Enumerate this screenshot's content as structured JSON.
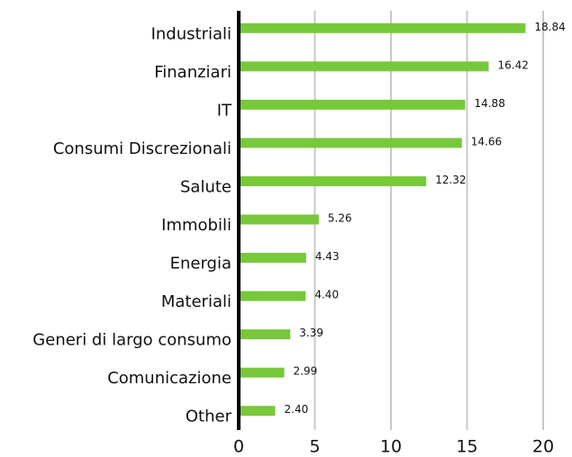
{
  "chart_data": {
    "type": "bar",
    "orientation": "horizontal",
    "categories": [
      "Industriali",
      "Finanziari",
      "IT",
      "Consumi Discrezionali",
      "Salute",
      "Immobili",
      "Energia",
      "Materiali",
      "Generi di largo consumo",
      "Comunicazione",
      "Other"
    ],
    "values": [
      18.84,
      16.42,
      14.88,
      14.66,
      12.32,
      5.26,
      4.43,
      4.4,
      3.39,
      2.99,
      2.4
    ],
    "value_labels": [
      "18.84",
      "16.42",
      "14.88",
      "14.66",
      "12.32",
      "5.26",
      "4.43",
      "4.40",
      "3.39",
      "2.99",
      "2.40"
    ],
    "color": "#77c83b",
    "xlim": [
      0,
      20
    ],
    "xticks": [
      0,
      5,
      10,
      15,
      20
    ],
    "grid": true
  }
}
